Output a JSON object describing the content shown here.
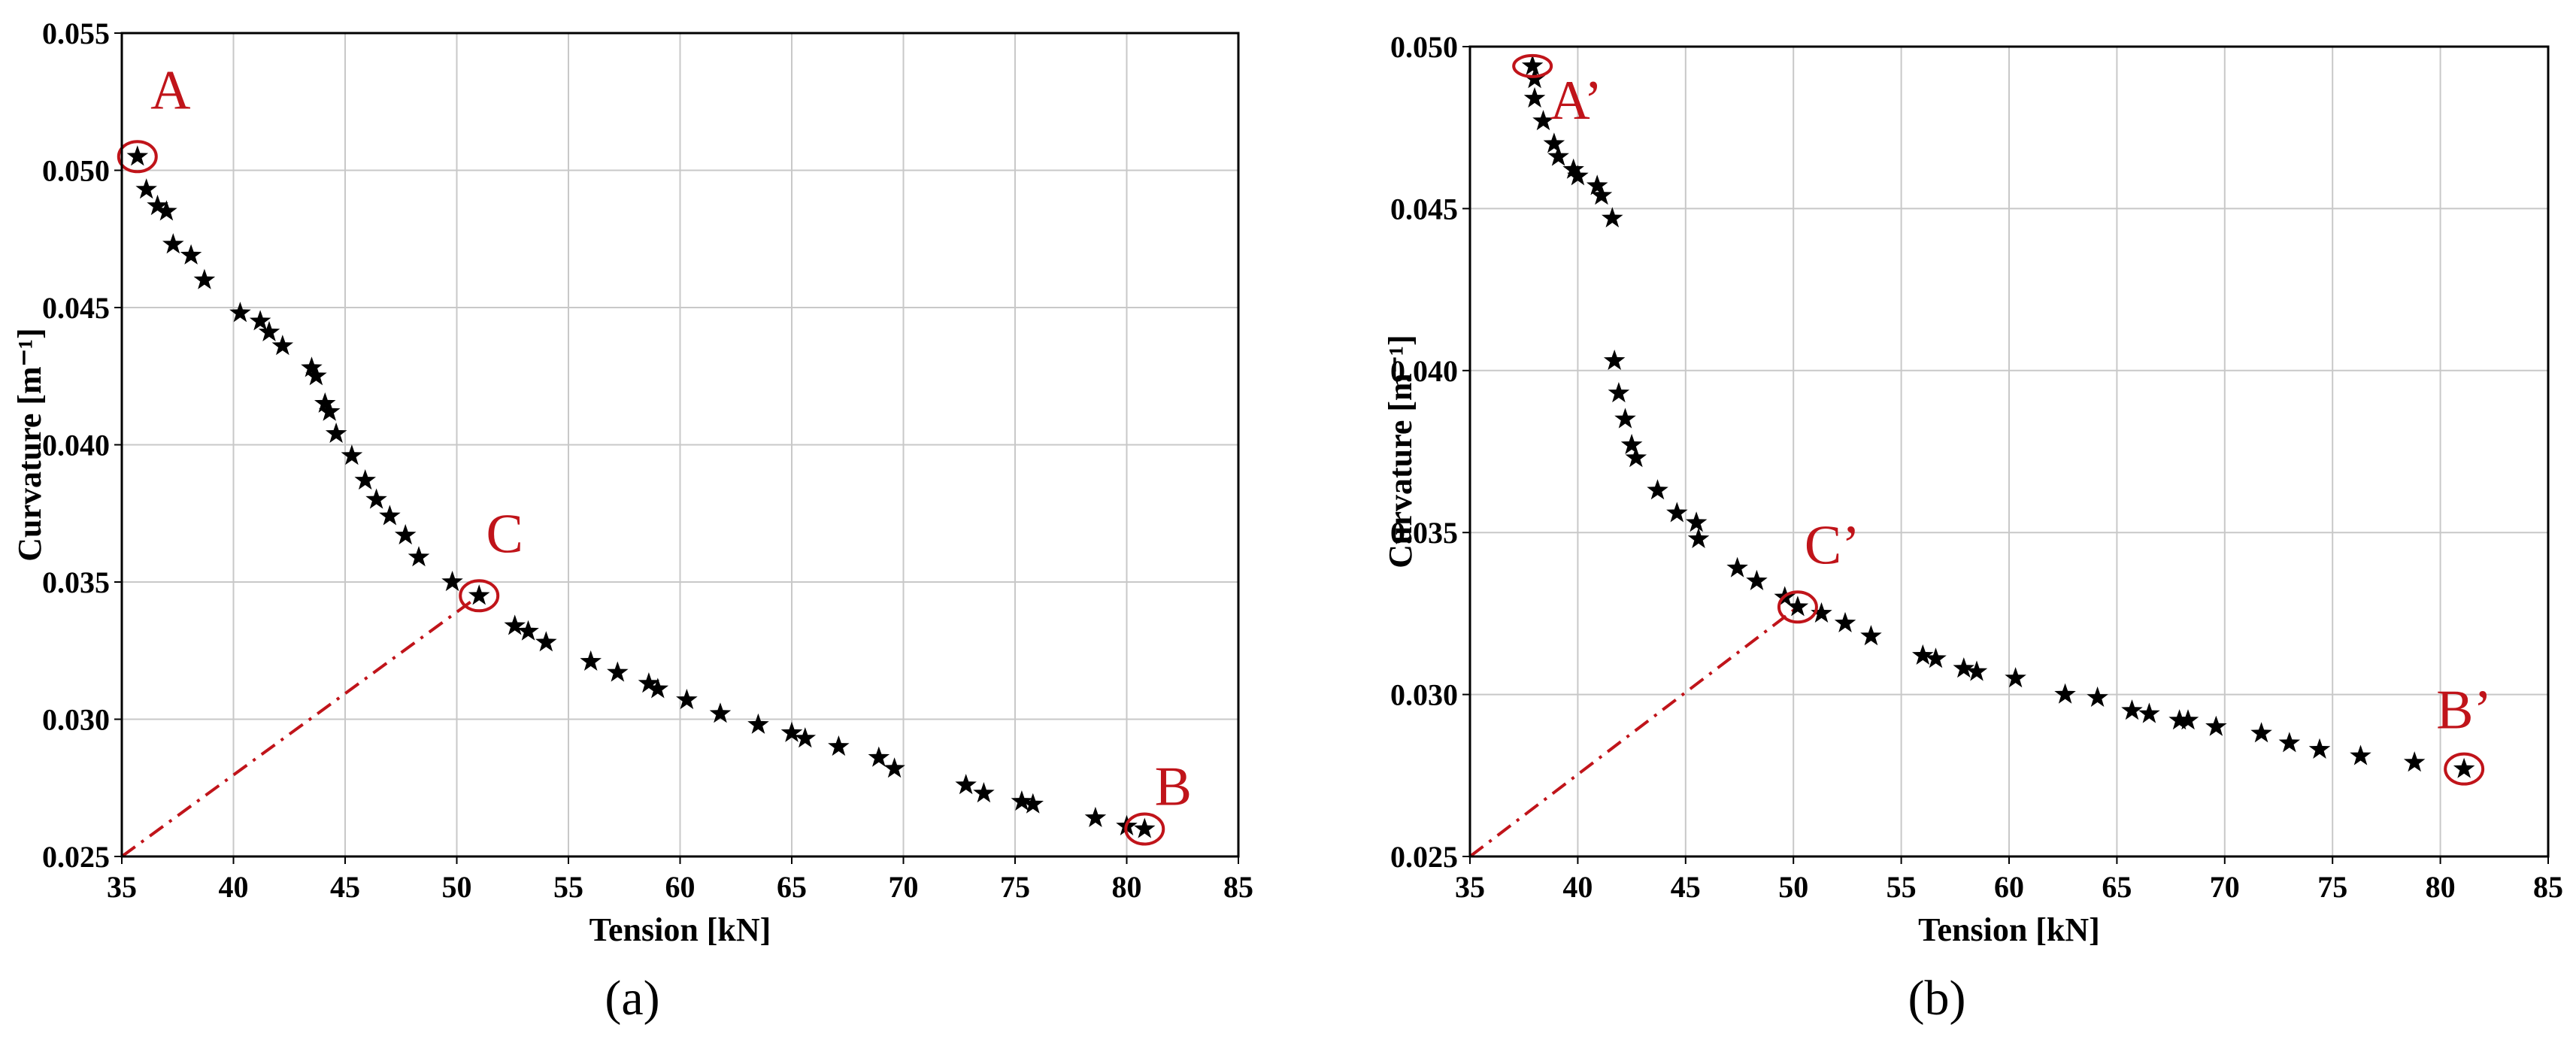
{
  "chart_data": [
    {
      "type": "scatter",
      "panel_label": "(a)",
      "xlabel": "Tension [kN]",
      "ylabel": "Curvature [m⁻¹]",
      "xlim": [
        35,
        85
      ],
      "ylim": [
        0.025,
        0.055
      ],
      "xticks": [
        "35",
        "40",
        "45",
        "50",
        "55",
        "60",
        "65",
        "70",
        "75",
        "80",
        "85"
      ],
      "yticks": [
        "0.025",
        "0.030",
        "0.035",
        "0.040",
        "0.045",
        "0.050",
        "0.055"
      ],
      "grid": true,
      "marker": "star",
      "marker_color": "#000000",
      "annotation_color": "#c0141a",
      "points": [
        [
          35.7,
          0.0505
        ],
        [
          36.1,
          0.0493
        ],
        [
          36.6,
          0.0487
        ],
        [
          37.0,
          0.0485
        ],
        [
          37.3,
          0.0473
        ],
        [
          38.1,
          0.0469
        ],
        [
          38.7,
          0.046
        ],
        [
          40.3,
          0.0448
        ],
        [
          41.2,
          0.0445
        ],
        [
          41.6,
          0.0441
        ],
        [
          42.2,
          0.0436
        ],
        [
          43.5,
          0.0428
        ],
        [
          43.7,
          0.0425
        ],
        [
          44.1,
          0.0415
        ],
        [
          44.3,
          0.0412
        ],
        [
          44.6,
          0.0404
        ],
        [
          45.3,
          0.0396
        ],
        [
          45.9,
          0.0387
        ],
        [
          46.4,
          0.038
        ],
        [
          47.0,
          0.0374
        ],
        [
          47.7,
          0.0367
        ],
        [
          48.3,
          0.0359
        ],
        [
          49.8,
          0.035
        ],
        [
          51.0,
          0.0345
        ],
        [
          52.6,
          0.0334
        ],
        [
          53.2,
          0.0332
        ],
        [
          54.0,
          0.0328
        ],
        [
          56.0,
          0.0321
        ],
        [
          57.2,
          0.0317
        ],
        [
          58.6,
          0.0313
        ],
        [
          59.0,
          0.0311
        ],
        [
          60.3,
          0.0307
        ],
        [
          61.8,
          0.0302
        ],
        [
          63.5,
          0.0298
        ],
        [
          65.0,
          0.0295
        ],
        [
          65.6,
          0.0293
        ],
        [
          67.1,
          0.029
        ],
        [
          68.9,
          0.0286
        ],
        [
          69.6,
          0.0282
        ],
        [
          72.8,
          0.0276
        ],
        [
          73.6,
          0.0273
        ],
        [
          75.3,
          0.027
        ],
        [
          75.8,
          0.0269
        ],
        [
          78.6,
          0.0264
        ],
        [
          80.0,
          0.0261
        ],
        [
          80.8,
          0.026
        ]
      ],
      "annotations": [
        {
          "label": "A",
          "x": 35.7,
          "y": 0.0505
        },
        {
          "label": "C",
          "x": 51.0,
          "y": 0.0345
        },
        {
          "label": "B",
          "x": 80.8,
          "y": 0.026
        }
      ],
      "dashdot_line": {
        "from": [
          35,
          0.025
        ],
        "to": [
          51.0,
          0.0345
        ]
      }
    },
    {
      "type": "scatter",
      "panel_label": "(b)",
      "xlabel": "Tension [kN]",
      "ylabel": "Curvature [m⁻¹]",
      "xlim": [
        35,
        85
      ],
      "ylim": [
        0.025,
        0.05
      ],
      "xticks": [
        "35",
        "40",
        "45",
        "50",
        "55",
        "60",
        "65",
        "70",
        "75",
        "80",
        "85"
      ],
      "yticks": [
        "0.025",
        "0.030",
        "0.035",
        "0.040",
        "0.045",
        "0.050"
      ],
      "grid": true,
      "marker": "star",
      "marker_color": "#000000",
      "annotation_color": "#c0141a",
      "points": [
        [
          37.9,
          0.0494
        ],
        [
          38.0,
          0.049
        ],
        [
          38.0,
          0.0484
        ],
        [
          38.4,
          0.0477
        ],
        [
          38.9,
          0.047
        ],
        [
          39.1,
          0.0466
        ],
        [
          39.8,
          0.0462
        ],
        [
          40.0,
          0.046
        ],
        [
          40.9,
          0.0457
        ],
        [
          41.1,
          0.0454
        ],
        [
          41.6,
          0.0447
        ],
        [
          41.7,
          0.0403
        ],
        [
          41.9,
          0.0393
        ],
        [
          42.2,
          0.0385
        ],
        [
          42.5,
          0.0377
        ],
        [
          42.7,
          0.0373
        ],
        [
          43.7,
          0.0363
        ],
        [
          44.6,
          0.0356
        ],
        [
          45.5,
          0.0353
        ],
        [
          45.6,
          0.0348
        ],
        [
          47.4,
          0.0339
        ],
        [
          48.3,
          0.0335
        ],
        [
          49.6,
          0.033
        ],
        [
          50.2,
          0.0327
        ],
        [
          51.3,
          0.0325
        ],
        [
          52.4,
          0.0322
        ],
        [
          53.6,
          0.0318
        ],
        [
          56.0,
          0.0312
        ],
        [
          56.6,
          0.0311
        ],
        [
          57.9,
          0.0308
        ],
        [
          58.5,
          0.0307
        ],
        [
          60.3,
          0.0305
        ],
        [
          62.6,
          0.03
        ],
        [
          64.1,
          0.0299
        ],
        [
          65.7,
          0.0295
        ],
        [
          66.5,
          0.0294
        ],
        [
          67.9,
          0.0292
        ],
        [
          68.3,
          0.0292
        ],
        [
          69.6,
          0.029
        ],
        [
          71.7,
          0.0288
        ],
        [
          73.0,
          0.0285
        ],
        [
          74.4,
          0.0283
        ],
        [
          76.3,
          0.0281
        ],
        [
          78.8,
          0.0279
        ],
        [
          81.1,
          0.0277
        ]
      ],
      "annotations": [
        {
          "label": "A’",
          "x": 37.9,
          "y": 0.0494
        },
        {
          "label": "C’",
          "x": 50.2,
          "y": 0.0327
        },
        {
          "label": "B’",
          "x": 81.1,
          "y": 0.0277
        }
      ],
      "dashdot_line": {
        "from": [
          35,
          0.025
        ],
        "to": [
          50.2,
          0.0327
        ]
      }
    }
  ]
}
